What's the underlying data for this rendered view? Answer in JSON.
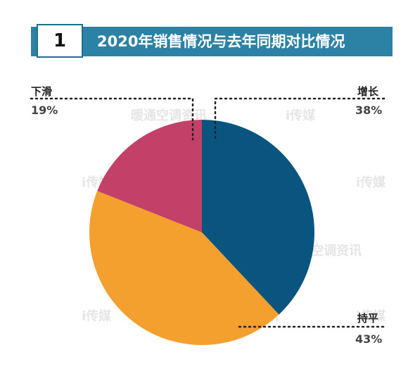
{
  "header": {
    "number": "1",
    "title": "2020年销售情况与去年同期对比情况"
  },
  "colors": {
    "banner": "#2b82a4",
    "增长": "#0a5580",
    "持平": "#f3a02f",
    "下滑": "#c34068"
  },
  "chart_data": {
    "type": "pie",
    "title": "2020年销售情况与去年同期对比情况",
    "slices": [
      {
        "label": "增长",
        "value": 38,
        "display": "38%",
        "color": "#0a5580"
      },
      {
        "label": "持平",
        "value": 43,
        "display": "43%",
        "color": "#f3a02f"
      },
      {
        "label": "下滑",
        "value": 19,
        "display": "19%",
        "color": "#c34068"
      }
    ]
  },
  "watermarks": [
    "暖通空调资讯",
    "i传媒"
  ]
}
